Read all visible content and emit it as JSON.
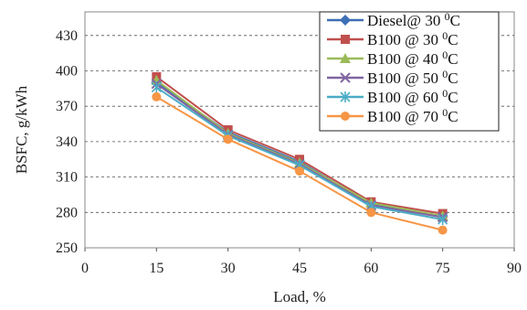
{
  "chart_data": {
    "type": "line",
    "xlabel": "Load, %",
    "ylabel": "BSFC, g/kWh",
    "xlim": [
      0,
      90
    ],
    "ylim": [
      250,
      450
    ],
    "xticks": [
      0,
      15,
      30,
      45,
      60,
      75,
      90
    ],
    "yticks": [
      250,
      280,
      310,
      340,
      370,
      400,
      430
    ],
    "grid": "y-dashed",
    "legend_position": "top-right",
    "x": [
      15,
      30,
      45,
      60,
      75
    ],
    "series": [
      {
        "name": "Diesel@ 30",
        "unit_suffix": "0C",
        "marker": "diamond",
        "color": "#3f6fb5",
        "values": [
          390,
          348,
          323,
          287,
          277
        ]
      },
      {
        "name": "B100 @ 30",
        "unit_suffix": "0C",
        "marker": "square",
        "color": "#c0504d",
        "values": [
          395,
          350,
          325,
          289,
          279
        ]
      },
      {
        "name": "B100 @ 40",
        "unit_suffix": "0C",
        "marker": "triangle",
        "color": "#9bbb59",
        "values": [
          392,
          347,
          322,
          288,
          277
        ]
      },
      {
        "name": "B100 @ 50",
        "unit_suffix": "0C",
        "marker": "x",
        "color": "#8064a2",
        "values": [
          389,
          346,
          321,
          286,
          276
        ]
      },
      {
        "name": "B100 @ 60",
        "unit_suffix": "0C",
        "marker": "star",
        "color": "#4bacc6",
        "values": [
          386,
          345,
          320,
          285,
          274
        ]
      },
      {
        "name": "B100 @ 70",
        "unit_suffix": "0C",
        "marker": "circle",
        "color": "#f79646",
        "values": [
          378,
          342,
          315,
          280,
          265
        ]
      }
    ]
  }
}
